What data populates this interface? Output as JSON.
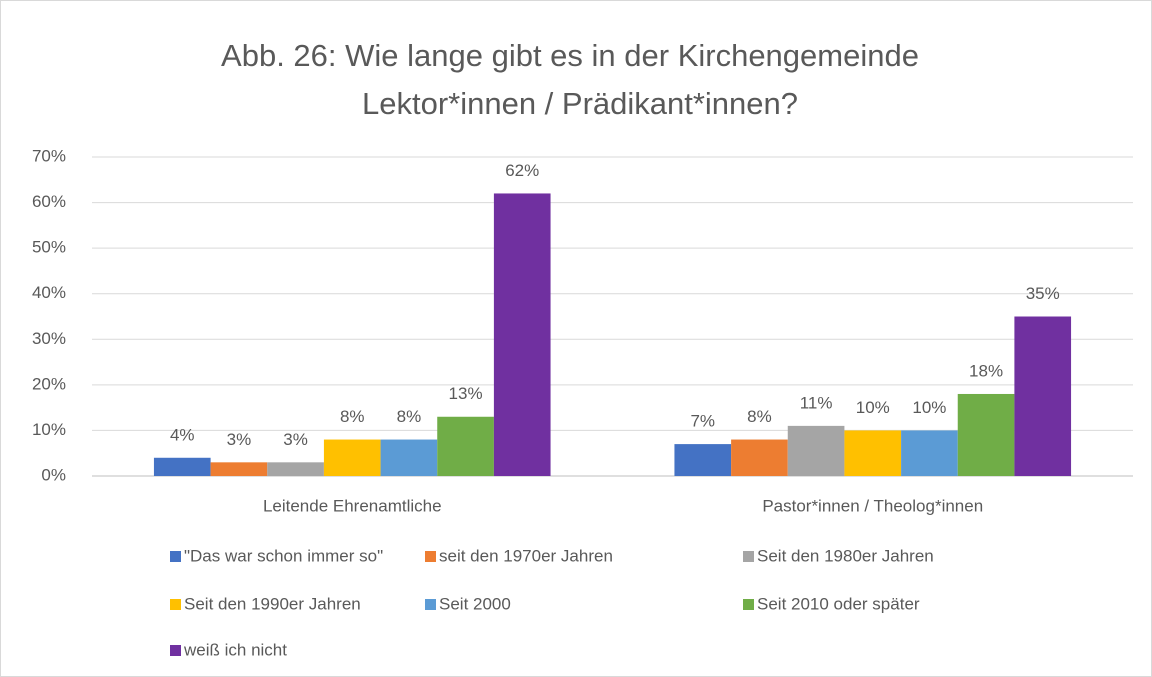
{
  "chart_data": {
    "type": "bar",
    "title": [
      "Abb. 26: Wie lange gibt es in der Kirchengemeinde",
      "Lektor*innen / Prädikant*innen?"
    ],
    "categories": [
      "Leitende Ehrenamtliche",
      "Pastor*innen / Theolog*innen"
    ],
    "series": [
      {
        "name": "\"Das war schon immer so\"",
        "color": "#4472c4",
        "values": [
          4,
          7
        ],
        "value_labels": [
          "4%",
          "7%"
        ]
      },
      {
        "name": "seit den 1970er Jahren",
        "color": "#ed7d31",
        "values": [
          3,
          8
        ],
        "value_labels": [
          "3%",
          "8%"
        ]
      },
      {
        "name": "Seit den 1980er Jahren",
        "color": "#a5a5a5",
        "values": [
          3,
          11
        ],
        "value_labels": [
          "3%",
          "11%"
        ]
      },
      {
        "name": "Seit den 1990er Jahren",
        "color": "#ffc000",
        "values": [
          8,
          10
        ],
        "value_labels": [
          "8%",
          "10%"
        ]
      },
      {
        "name": "Seit 2000",
        "color": "#5b9bd5",
        "values": [
          8,
          10
        ],
        "value_labels": [
          "8%",
          "10%"
        ]
      },
      {
        "name": "Seit 2010 oder später",
        "color": "#70ad47",
        "values": [
          13,
          18
        ],
        "value_labels": [
          "13%",
          "18%"
        ]
      },
      {
        "name": "weiß ich nicht",
        "color": "#7030a0",
        "values": [
          62,
          35
        ],
        "value_labels": [
          "62%",
          "35%"
        ]
      }
    ],
    "ylim": [
      0,
      70
    ],
    "yticks": [
      {
        "value": 0,
        "label": "0%"
      },
      {
        "value": 10,
        "label": "10%"
      },
      {
        "value": 20,
        "label": "20%"
      },
      {
        "value": 30,
        "label": "30%"
      },
      {
        "value": 40,
        "label": "40%"
      },
      {
        "value": 50,
        "label": "50%"
      },
      {
        "value": 60,
        "label": "60%"
      },
      {
        "value": 70,
        "label": "70%"
      }
    ],
    "grid": true,
    "legend": "bottom"
  }
}
